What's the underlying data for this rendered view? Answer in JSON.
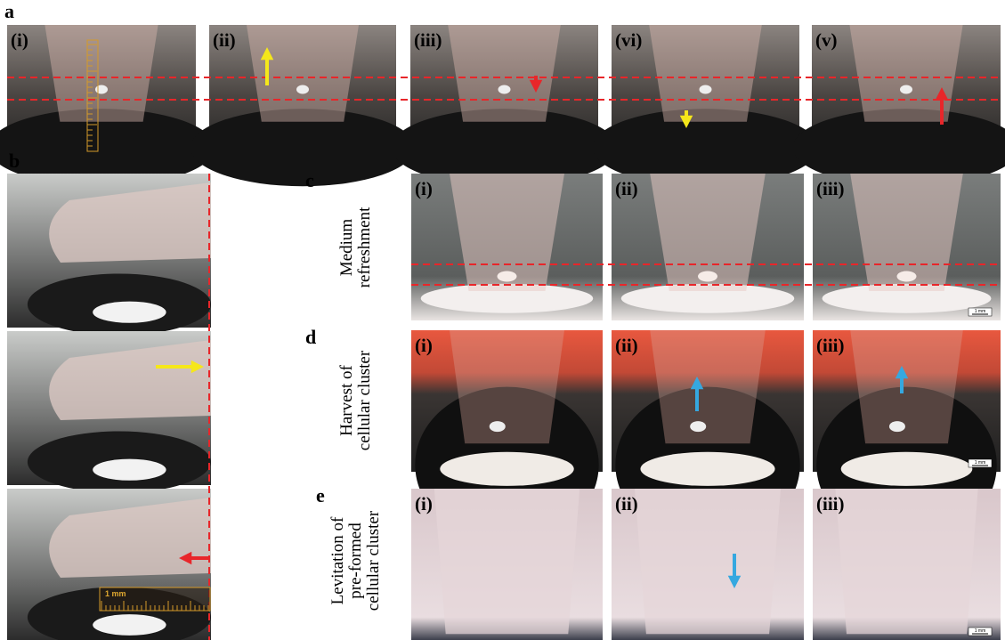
{
  "figure": {
    "a": {
      "label": "a",
      "sublabels": [
        "(i)",
        "(ii)",
        "(iii)",
        "(vi)",
        "(v)"
      ]
    },
    "b": {
      "label": "b",
      "scale_label": "1 mm"
    },
    "c": {
      "label": "c",
      "row_label": [
        "Medium",
        "refreshment"
      ],
      "sublabels": [
        "(i)",
        "(ii)",
        "(iii)"
      ],
      "scale_label": "1 mm"
    },
    "d": {
      "label": "d",
      "row_label": [
        "Harvest of",
        "cellular cluster"
      ],
      "sublabels": [
        "(i)",
        "(ii)",
        "(iii)"
      ],
      "scale_label": "1 mm"
    },
    "e": {
      "label": "e",
      "row_label": [
        "Levitation of",
        "pre-formed",
        "cellular cluster"
      ],
      "sublabels": [
        "(i)",
        "(ii)",
        "(iii)"
      ],
      "scale_label": "1 mm"
    }
  }
}
